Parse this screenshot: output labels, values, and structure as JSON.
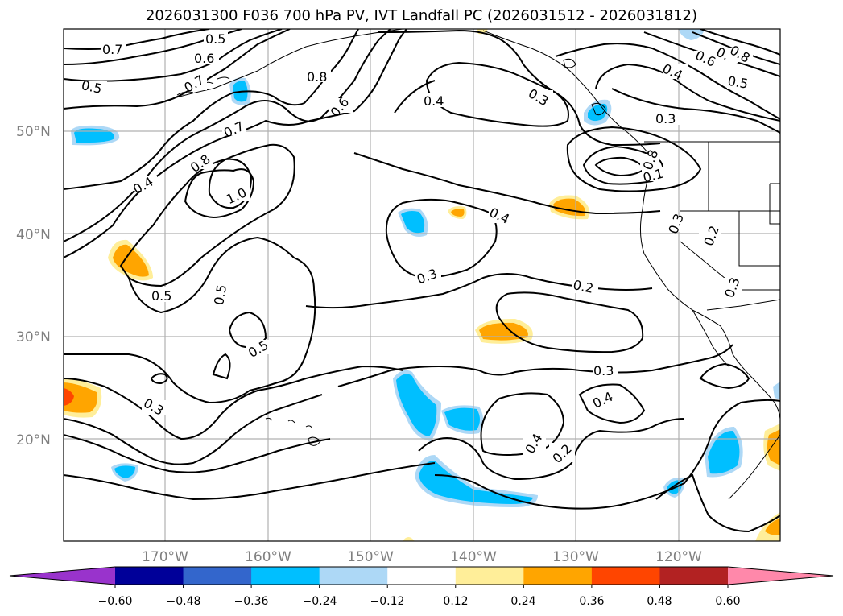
{
  "title": "2026031300 F036 700 hPa PV, IVT Landfall PC (2026031512 - 2026031812)",
  "map": {
    "lat_ticks": [
      "50°N",
      "40°N",
      "30°N",
      "20°N"
    ],
    "lon_ticks": [
      "170°W",
      "160°W",
      "150°W",
      "140°W",
      "130°W",
      "120°W"
    ],
    "contour_labels": [
      "0.7",
      "0.5",
      "0.6",
      "0.5",
      "0.7",
      "0.8",
      "0.6",
      "0.4",
      "0.3",
      "0.6",
      "0.7",
      "0.8",
      "0.5",
      "0.4",
      "0.3",
      "0.7",
      "0.8",
      "1.0",
      "0.4",
      "0.1",
      "0.8",
      "0.4",
      "0.3",
      "0.3",
      "0.2",
      "0.5",
      "0.2",
      "0.3",
      "0.5",
      "0.3",
      "0.5",
      "0.4",
      "0.4",
      "0.2",
      "0.3"
    ],
    "colors": {
      "contour": "#000000",
      "grid": "#b0b0b0",
      "pos_light": "#ffee99",
      "pos_mid": "#ffa500",
      "neg_light": "#add8f6",
      "neg_mid": "#00bfff"
    }
  },
  "colorbar": {
    "ticks": [
      "−0.60",
      "−0.48",
      "−0.36",
      "−0.24",
      "−0.12",
      "0.12",
      "0.24",
      "0.36",
      "0.48",
      "0.60"
    ],
    "colors": [
      "#9933cc",
      "#000099",
      "#3366cc",
      "#00bfff",
      "#add8f6",
      "#ffffff",
      "#ffee99",
      "#ffa500",
      "#ff4500",
      "#b22222",
      "#ff88aa"
    ]
  }
}
